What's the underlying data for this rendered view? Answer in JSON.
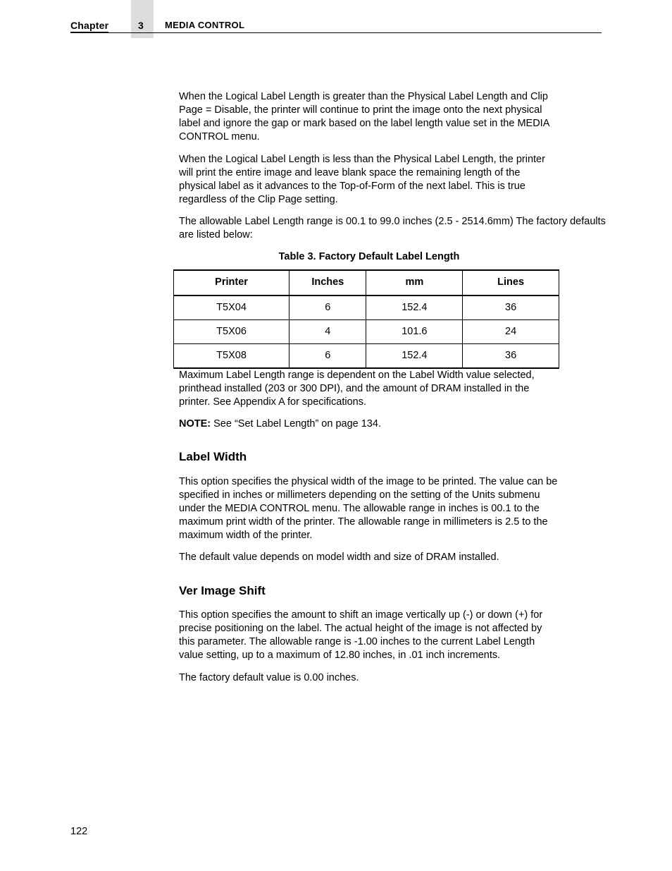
{
  "header": {
    "chapter_label": "Chapter",
    "chapter_num": "3",
    "section_title": "MEDIA CONTROL"
  },
  "body": {
    "p1": "When the Logical Label Length is greater than the Physical Label Length and Clip Page = Disable, the printer will continue to print the image onto the next physical label and ignore the gap or mark based on the label length value set in the MEDIA CONTROL menu.",
    "p2": "When the Logical Label Length is less than the Physical Label Length, the printer will print the entire image and leave blank space the remaining length of the physical label as it advances to the Top-of-Form of the next label. This is true regardless of the Clip Page setting.",
    "p3": "The allowable Label Length range is 00.1 to 99.0 inches (2.5 - 2514.6mm) The factory defaults are listed below:",
    "table_caption": "Table 3. Factory Default Label Length",
    "table": {
      "columns": [
        "Printer",
        "Inches",
        "mm",
        "Lines"
      ],
      "rows": [
        [
          "T5X04",
          "6",
          "152.4",
          "36"
        ],
        [
          "T5X06",
          "4",
          "101.6",
          "24"
        ],
        [
          "T5X08",
          "6",
          "152.4",
          "36"
        ]
      ],
      "col_widths_pct": [
        30,
        20,
        25,
        25
      ]
    },
    "p4": "Maximum Label Length range is dependent on the Label Width value selected, printhead installed (203 or 300 DPI), and the amount of DRAM installed in the printer. See Appendix A for specifications.",
    "note_label": "NOTE:",
    "note_text": "See “Set Label Length” on page 134.",
    "h_label_width": "Label Width",
    "p5": "This option specifies the physical width of the image to be printed. The value can be specified in inches or millimeters depending on the setting of the Units submenu under the MEDIA CONTROL menu. The allowable range in inches is 00.1 to the maximum print width of the printer. The allowable range in millimeters is 2.5 to the maximum width of the printer.",
    "p6": "The default value depends on model width and size of DRAM installed.",
    "h_ver_shift": "Ver Image Shift",
    "p7": "This option specifies the amount to shift an image vertically up (-) or down (+) for precise positioning on the label. The actual height of the image is not affected by this parameter. The allowable range is -1.00 inches to the current Label Length value setting, up to a maximum of 12.80 inches, in .01 inch increments.",
    "p8": "The factory default value is 0.00 inches."
  },
  "page_number": "122"
}
